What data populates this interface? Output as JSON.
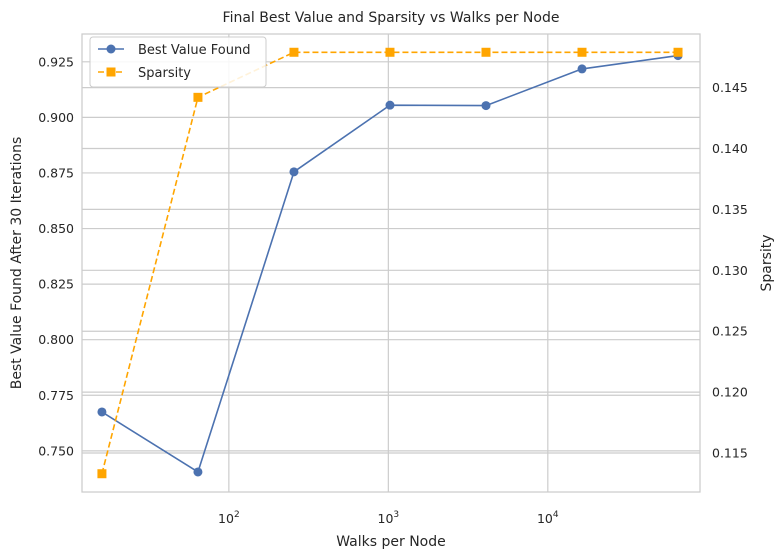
{
  "chart_data": {
    "type": "line",
    "title": "Final Best Value and Sparsity vs Walks per Node",
    "xlabel": "Walks per Node",
    "ylabel_left": "Best Value Found After 30 Iterations",
    "ylabel_right": "Sparsity",
    "xscale": "log",
    "x": [
      16,
      64,
      256,
      1024,
      4096,
      16384,
      65536
    ],
    "xlim": [
      12,
      90000
    ],
    "x_ticks": [
      100,
      1000,
      10000
    ],
    "x_tick_labels": [
      {
        "base": "10",
        "exp": "2"
      },
      {
        "base": "10",
        "exp": "3"
      },
      {
        "base": "10",
        "exp": "4"
      }
    ],
    "ylim_left": [
      0.7315,
      0.9375
    ],
    "yticks_left": [
      0.75,
      0.775,
      0.8,
      0.825,
      0.85,
      0.875,
      0.9,
      0.925
    ],
    "ytick_labels_left": [
      "0.750",
      "0.775",
      "0.800",
      "0.825",
      "0.850",
      "0.875",
      "0.900",
      "0.925"
    ],
    "ylim_right": [
      0.1118,
      0.1494
    ],
    "yticks_right": [
      0.115,
      0.12,
      0.125,
      0.13,
      0.135,
      0.14,
      0.145
    ],
    "ytick_labels_right": [
      "0.115",
      "0.120",
      "0.125",
      "0.130",
      "0.135",
      "0.140",
      "0.145"
    ],
    "grid": true,
    "legend_position": "top-left",
    "series": [
      {
        "name": "Best Value Found",
        "axis": "left",
        "color": "#4c72b0",
        "marker": "circle",
        "linestyle": "solid",
        "values": [
          0.7675,
          0.7405,
          0.8755,
          0.9055,
          0.9053,
          0.9218,
          0.9278
        ]
      },
      {
        "name": "Sparsity",
        "axis": "right",
        "color": "#ffa500",
        "marker": "square",
        "linestyle": "dashed",
        "values": [
          0.1133,
          0.1442,
          0.1479,
          0.1479,
          0.1479,
          0.1479,
          0.1479
        ]
      }
    ]
  }
}
